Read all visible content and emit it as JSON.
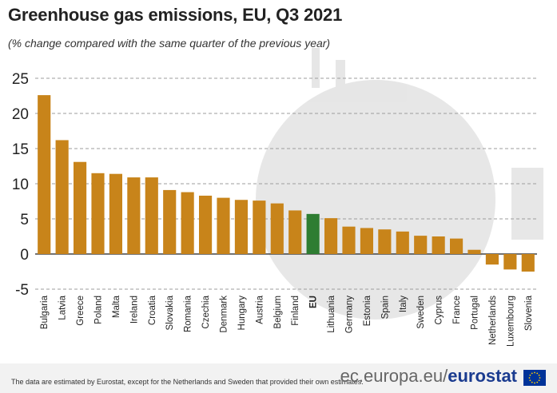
{
  "header": {
    "title": "Greenhouse gas emissions, EU, Q3 2021",
    "subtitle": "(% change compared with the same quarter of the previous year)"
  },
  "footer": {
    "note": "The data are estimated by Eurostat, except for the Netherlands and Sweden that provided their own estimates.",
    "brand_prefix": "ec.europa.eu/",
    "brand_name": "eurostat"
  },
  "colors": {
    "bar": "#C8841A",
    "eu_bar": "#2E7D32",
    "grid": "#9e9e9e",
    "flag": "#003399",
    "flag_stars": "#FFCC00"
  },
  "chart_data": {
    "type": "bar",
    "categories": [
      "Bulgaria",
      "Latvia",
      "Greece",
      "Poland",
      "Malta",
      "Ireland",
      "Croatia",
      "Slovakia",
      "Romania",
      "Czechia",
      "Denmark",
      "Hungary",
      "Austria",
      "Belgium",
      "Finland",
      "EU",
      "Lithuania",
      "Germany",
      "Estonia",
      "Spain",
      "Italy",
      "Sweden",
      "Cyprus",
      "France",
      "Portugal",
      "Netherlands",
      "Luxembourg",
      "Slovenia"
    ],
    "values": [
      22.6,
      16.2,
      13.1,
      11.5,
      11.4,
      10.9,
      10.9,
      9.1,
      8.8,
      8.3,
      8.0,
      7.7,
      7.6,
      7.2,
      6.2,
      5.7,
      5.1,
      3.9,
      3.7,
      3.5,
      3.2,
      2.6,
      2.5,
      2.2,
      0.6,
      -1.5,
      -2.2,
      -2.5
    ],
    "highlight": "EU",
    "yticks": [
      25,
      20,
      15,
      10,
      5,
      0,
      -5
    ],
    "ylim": [
      -5,
      25
    ],
    "grid": true
  }
}
